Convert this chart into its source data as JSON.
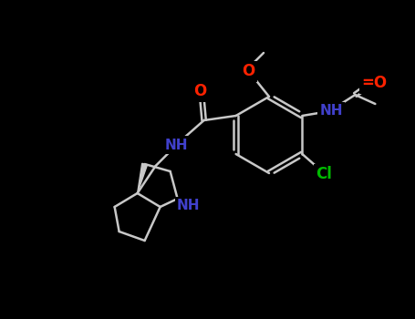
{
  "bg_color": "#000000",
  "bond_color": "#c8c8c8",
  "O_color": "#ff2200",
  "N_color": "#4040cc",
  "Cl_color": "#00bb00",
  "figsize": [
    4.55,
    3.5
  ],
  "dpi": 100,
  "xlim": [
    0,
    455
  ],
  "ylim": [
    0,
    350
  ],
  "bond_lw": 1.8,
  "font_size": 11
}
